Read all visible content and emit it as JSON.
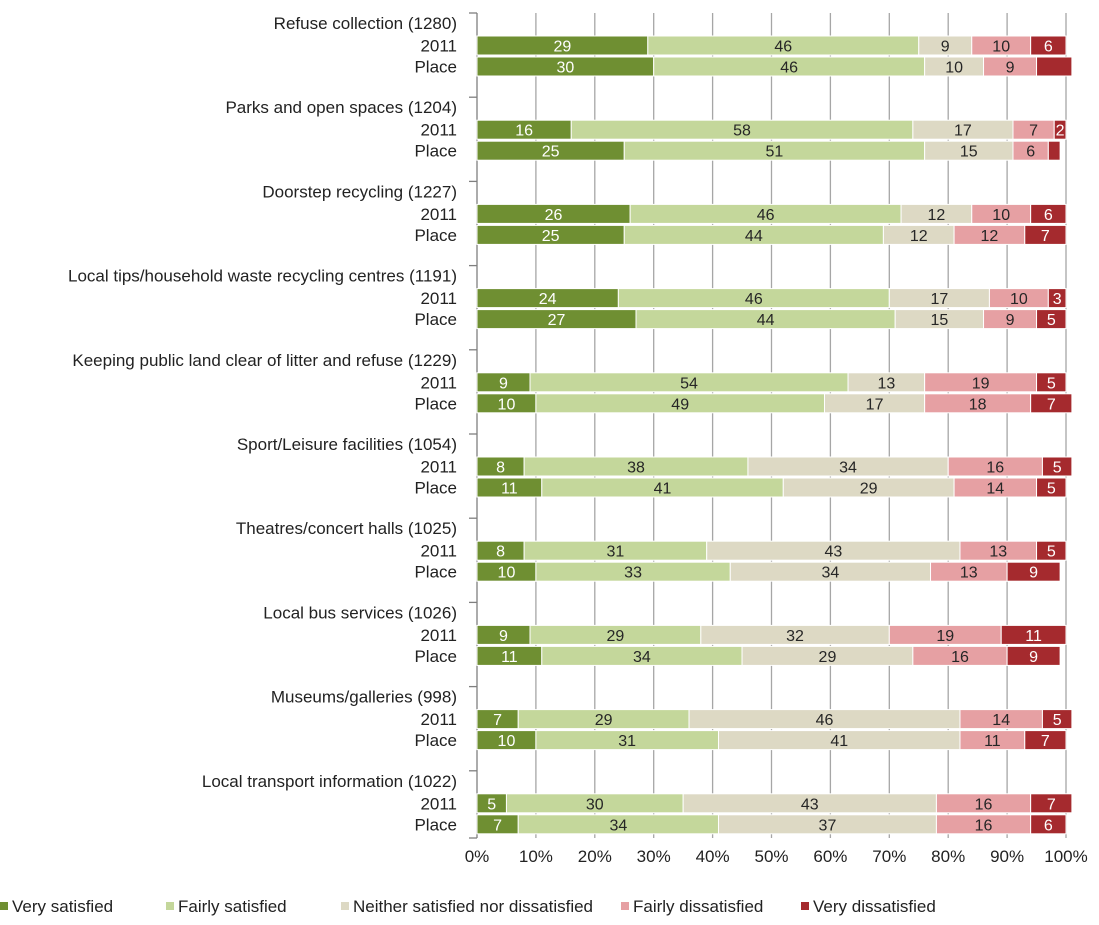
{
  "chart_data": {
    "type": "bar",
    "orientation": "horizontal",
    "stacked": true,
    "percent_stacked": true,
    "xlim": [
      0,
      100
    ],
    "x_ticks": [
      "0%",
      "10%",
      "20%",
      "30%",
      "40%",
      "50%",
      "60%",
      "70%",
      "80%",
      "90%",
      "100%"
    ],
    "grid": "vertical",
    "legend_position": "bottom",
    "series": [
      {
        "name": "Very satisfied",
        "color": "#6f8f32"
      },
      {
        "name": "Fairly satisfied",
        "color": "#c4d79b"
      },
      {
        "name": "Neither satisfied nor dissatisfied",
        "color": "#ddd9c4"
      },
      {
        "name": "Fairly dissatisfied",
        "color": "#e6a0a3"
      },
      {
        "name": "Very dissatisfied",
        "color": "#a52a2e"
      }
    ],
    "groups": [
      {
        "label": "Refuse collection (1280)",
        "rows": [
          {
            "label": "2011",
            "values": [
              29,
              46,
              9,
              10,
              6
            ]
          },
          {
            "label": "Place",
            "values": [
              30,
              46,
              10,
              9,
              6
            ],
            "labels": [
              "30",
              "46",
              "10",
              "9",
              ""
            ]
          }
        ]
      },
      {
        "label": "Parks and open spaces (1204)",
        "rows": [
          {
            "label": "2011",
            "values": [
              16,
              58,
              17,
              7,
              2
            ]
          },
          {
            "label": "Place",
            "values": [
              25,
              51,
              15,
              6,
              2
            ],
            "labels": [
              "25",
              "51",
              "15",
              "6",
              ""
            ]
          }
        ]
      },
      {
        "label": "Doorstep recycling (1227)",
        "rows": [
          {
            "label": "2011",
            "values": [
              26,
              46,
              12,
              10,
              6
            ]
          },
          {
            "label": "Place",
            "values": [
              25,
              44,
              12,
              12,
              7
            ]
          }
        ]
      },
      {
        "label": "Local tips/household waste recycling centres (1191)",
        "rows": [
          {
            "label": "2011",
            "values": [
              24,
              46,
              17,
              10,
              3
            ]
          },
          {
            "label": "Place",
            "values": [
              27,
              44,
              15,
              9,
              5
            ]
          }
        ]
      },
      {
        "label": "Keeping public land clear of litter and refuse (1229)",
        "rows": [
          {
            "label": "2011",
            "values": [
              9,
              54,
              13,
              19,
              5
            ]
          },
          {
            "label": "Place",
            "values": [
              10,
              49,
              17,
              18,
              7
            ]
          }
        ]
      },
      {
        "label": "Sport/Leisure facilities (1054)",
        "rows": [
          {
            "label": "2011",
            "values": [
              8,
              38,
              34,
              16,
              5
            ]
          },
          {
            "label": "Place",
            "values": [
              11,
              41,
              29,
              14,
              5
            ]
          }
        ]
      },
      {
        "label": "Theatres/concert halls (1025)",
        "rows": [
          {
            "label": "2011",
            "values": [
              8,
              31,
              43,
              13,
              5
            ]
          },
          {
            "label": "Place",
            "values": [
              10,
              33,
              34,
              13,
              9
            ]
          }
        ]
      },
      {
        "label": "Local bus services (1026)",
        "rows": [
          {
            "label": "2011",
            "values": [
              9,
              29,
              32,
              19,
              11
            ]
          },
          {
            "label": "Place",
            "values": [
              11,
              34,
              29,
              16,
              9
            ]
          }
        ]
      },
      {
        "label": "Museums/galleries (998)",
        "rows": [
          {
            "label": "2011",
            "values": [
              7,
              29,
              46,
              14,
              5
            ]
          },
          {
            "label": "Place",
            "values": [
              10,
              31,
              41,
              11,
              7
            ]
          }
        ]
      },
      {
        "label": "Local transport information (1022)",
        "rows": [
          {
            "label": "2011",
            "values": [
              5,
              30,
              43,
              16,
              7
            ]
          },
          {
            "label": "Place",
            "values": [
              7,
              34,
              37,
              16,
              6
            ]
          }
        ]
      }
    ]
  }
}
